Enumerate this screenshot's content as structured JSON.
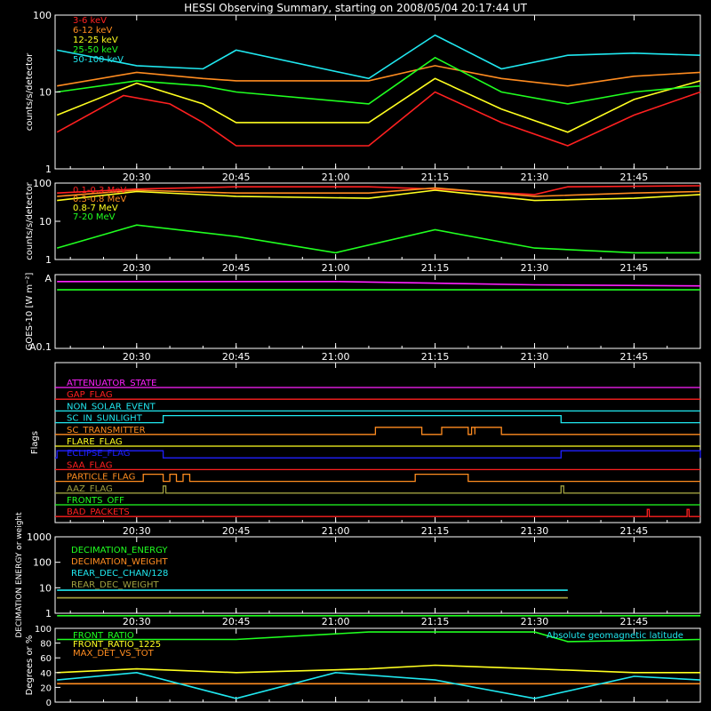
{
  "title": "HESSI Observing Summary, starting on 2008/05/04 20:17:44 UT",
  "colors": {
    "background": "#000000",
    "axes": "#ffffff",
    "red": "#ff2020",
    "orange": "#ff8c20",
    "yellow": "#ffff20",
    "green": "#20ff20",
    "cyan": "#20e8f0",
    "magenta": "#ff20ff",
    "blue": "#2020ff",
    "olive": "#a0a040"
  },
  "time_axis": {
    "ticks": [
      "20:30",
      "20:45",
      "21:00",
      "21:15",
      "21:30",
      "21:45"
    ]
  },
  "chart_data": [
    {
      "type": "line",
      "ylabel": "counts/s/detector",
      "yscale": "log",
      "ylim": [
        1,
        100
      ],
      "yticks": [
        "1",
        "10",
        "100"
      ],
      "legend_placement": "top-left",
      "series": [
        {
          "name": "3-6 keV",
          "color": "#ff2020",
          "note_values": "approx",
          "points": [
            [
              "20:18",
              3
            ],
            [
              "20:28",
              9
            ],
            [
              "20:35",
              7
            ],
            [
              "20:40",
              4
            ],
            [
              "20:45",
              2
            ],
            [
              "21:05",
              2
            ],
            [
              "21:15",
              10
            ],
            [
              "21:25",
              4
            ],
            [
              "21:35",
              2
            ],
            [
              "21:45",
              5
            ],
            [
              "21:55",
              10
            ]
          ]
        },
        {
          "name": "6-12 keV",
          "color": "#ff8c20",
          "points": [
            [
              "20:18",
              12
            ],
            [
              "20:30",
              18
            ],
            [
              "20:40",
              15
            ],
            [
              "20:45",
              14
            ],
            [
              "21:05",
              14
            ],
            [
              "21:15",
              22
            ],
            [
              "21:25",
              15
            ],
            [
              "21:35",
              12
            ],
            [
              "21:45",
              16
            ],
            [
              "21:55",
              18
            ]
          ]
        },
        {
          "name": "12-25 keV",
          "color": "#ffff20",
          "points": [
            [
              "20:18",
              5
            ],
            [
              "20:30",
              13
            ],
            [
              "20:40",
              7
            ],
            [
              "20:45",
              4
            ],
            [
              "21:05",
              4
            ],
            [
              "21:15",
              15
            ],
            [
              "21:25",
              6
            ],
            [
              "21:35",
              3
            ],
            [
              "21:45",
              8
            ],
            [
              "21:55",
              14
            ]
          ]
        },
        {
          "name": "25-50 keV",
          "color": "#20ff20",
          "points": [
            [
              "20:18",
              10
            ],
            [
              "20:30",
              14
            ],
            [
              "20:40",
              12
            ],
            [
              "20:45",
              10
            ],
            [
              "21:05",
              7
            ],
            [
              "21:15",
              28
            ],
            [
              "21:25",
              10
            ],
            [
              "21:35",
              7
            ],
            [
              "21:45",
              10
            ],
            [
              "21:55",
              12
            ]
          ]
        },
        {
          "name": "50-100 keV",
          "color": "#20e8f0",
          "points": [
            [
              "20:18",
              35
            ],
            [
              "20:30",
              22
            ],
            [
              "20:40",
              20
            ],
            [
              "20:45",
              35
            ],
            [
              "21:05",
              15
            ],
            [
              "21:15",
              55
            ],
            [
              "21:25",
              20
            ],
            [
              "21:35",
              30
            ],
            [
              "21:45",
              32
            ],
            [
              "21:55",
              30
            ]
          ]
        }
      ]
    },
    {
      "type": "line",
      "ylabel": "counts/s/detector",
      "yscale": "log",
      "ylim": [
        1,
        100
      ],
      "yticks": [
        "1",
        "10",
        "100"
      ],
      "legend_placement": "top-left",
      "series": [
        {
          "name": "0.1-0.3 MeV",
          "color": "#ff2020",
          "points": [
            [
              "20:18",
              55
            ],
            [
              "20:30",
              70
            ],
            [
              "20:45",
              80
            ],
            [
              "21:05",
              80
            ],
            [
              "21:15",
              70
            ],
            [
              "21:30",
              50
            ],
            [
              "21:35",
              80
            ],
            [
              "21:55",
              85
            ]
          ]
        },
        {
          "name": "0.3-0.8 MeV",
          "color": "#ff8c20",
          "points": [
            [
              "20:18",
              45
            ],
            [
              "20:30",
              65
            ],
            [
              "20:45",
              55
            ],
            [
              "21:05",
              55
            ],
            [
              "21:15",
              75
            ],
            [
              "21:30",
              45
            ],
            [
              "21:45",
              55
            ],
            [
              "21:55",
              60
            ]
          ]
        },
        {
          "name": "0.8-7 MeV",
          "color": "#ffff20",
          "points": [
            [
              "20:18",
              35
            ],
            [
              "20:30",
              60
            ],
            [
              "20:45",
              45
            ],
            [
              "21:05",
              40
            ],
            [
              "21:15",
              65
            ],
            [
              "21:30",
              35
            ],
            [
              "21:45",
              40
            ],
            [
              "21:55",
              50
            ]
          ]
        },
        {
          "name": "7-20 MeV",
          "color": "#20ff20",
          "points": [
            [
              "20:18",
              2
            ],
            [
              "20:30",
              8
            ],
            [
              "20:45",
              4
            ],
            [
              "21:00",
              1.5
            ],
            [
              "21:15",
              6
            ],
            [
              "21:30",
              2
            ],
            [
              "21:45",
              1.5
            ],
            [
              "21:55",
              1.5
            ]
          ]
        }
      ]
    },
    {
      "type": "line",
      "ylabel": "GOES-10 [W m⁻²]",
      "yscale": "log",
      "yticks": [
        "A0.1",
        "A"
      ],
      "series": [
        {
          "color": "#ff20ff",
          "points": [
            [
              "20:18",
              0.95
            ],
            [
              "21:00",
              0.95
            ],
            [
              "21:30",
              0.85
            ],
            [
              "21:55",
              0.82
            ]
          ]
        },
        {
          "color": "#20ff20",
          "points": [
            [
              "20:18",
              0.72
            ],
            [
              "21:55",
              0.72
            ]
          ]
        }
      ]
    },
    {
      "type": "line",
      "ylabel": "Flags",
      "flags": [
        {
          "name": "ATTENUATOR_STATE",
          "color": "#ff20ff",
          "on": []
        },
        {
          "name": "GAP_FLAG",
          "color": "#ff2020",
          "on": []
        },
        {
          "name": "NON_SOLAR_EVENT",
          "color": "#20e8f0",
          "on": []
        },
        {
          "name": "SC_IN_SUNLIGHT",
          "color": "#20e8f0",
          "on": [
            [
              "20:34",
              "21:34"
            ]
          ]
        },
        {
          "name": "SC_TRANSMITTER",
          "color": "#ff8c20",
          "on": [
            [
              "21:06",
              "21:13"
            ],
            [
              "21:16",
              "21:20"
            ],
            [
              "21:20.5",
              "21:21"
            ],
            [
              "21:21",
              "21:25"
            ]
          ]
        },
        {
          "name": "FLARE_FLAG",
          "color": "#ffff20",
          "on": []
        },
        {
          "name": "ECLIPSE_FLAG",
          "color": "#2020ff",
          "on": [
            [
              "20:18",
              "20:34"
            ],
            [
              "21:34",
              "21:55"
            ]
          ]
        },
        {
          "name": "SAA_FLAG",
          "color": "#ff2020",
          "on": []
        },
        {
          "name": "PARTICLE_FLAG",
          "color": "#ff8c20",
          "on": [
            [
              "20:31",
              "20:34"
            ],
            [
              "20:35",
              "20:36"
            ],
            [
              "20:37",
              "20:38"
            ],
            [
              "21:12",
              "21:20"
            ]
          ]
        },
        {
          "name": "AAZ_FLAG",
          "color": "#a0a040",
          "on": [
            [
              "20:34",
              "20:34.4"
            ],
            [
              "21:34",
              "21:34.4"
            ]
          ]
        },
        {
          "name": "FRONTS_OFF",
          "color": "#20ff20",
          "on": []
        },
        {
          "name": "BAD_PACKETS",
          "color": "#ff2020",
          "on": [
            [
              "21:47",
              "21:47.3"
            ],
            [
              "21:53",
              "21:53.3"
            ]
          ]
        }
      ]
    },
    {
      "type": "line",
      "ylabel": "DECIMATION ENERGY or weight",
      "yscale": "log",
      "ylim": [
        1,
        1000
      ],
      "yticks": [
        "1",
        "10",
        "100",
        "1000"
      ],
      "legend_placement": "top-left",
      "series": [
        {
          "name": "DECIMATION_ENERGY",
          "color": "#20ff20",
          "points": [
            [
              "20:18",
              0.8
            ],
            [
              "21:55",
              0.8
            ]
          ]
        },
        {
          "name": "DECIMATION_WEIGHT",
          "color": "#ff8c20",
          "points": [
            [
              "20:18",
              4
            ],
            [
              "20:45",
              4
            ],
            [
              "21:05",
              4
            ],
            [
              "21:35",
              4
            ]
          ]
        },
        {
          "name": "REAR_DEC_CHAN/128",
          "color": "#20e8f0",
          "points": [
            [
              "20:18",
              8
            ],
            [
              "20:45",
              8
            ],
            [
              "21:05",
              8
            ],
            [
              "21:35",
              8
            ]
          ]
        },
        {
          "name": "REAR_DEC_WEIGHT",
          "color": "#a0a040",
          "points": [
            [
              "20:18",
              4
            ],
            [
              "20:45",
              4
            ],
            [
              "21:05",
              4
            ],
            [
              "21:35",
              4
            ]
          ]
        }
      ]
    },
    {
      "type": "line",
      "ylabel": "Degrees or %",
      "ylim": [
        0,
        100
      ],
      "yticks": [
        "0",
        "20",
        "40",
        "60",
        "80",
        "100"
      ],
      "legend_placement": "top-left",
      "series": [
        {
          "name": "FRONT_RATIO",
          "color": "#20ff20",
          "points": [
            [
              "20:18",
              85
            ],
            [
              "20:45",
              85
            ],
            [
              "21:05",
              95
            ],
            [
              "21:30",
              95
            ],
            [
              "21:35",
              82
            ],
            [
              "21:55",
              85
            ]
          ]
        },
        {
          "name": "FRONT_RATIO_1225",
          "color": "#ffff20",
          "points": [
            [
              "20:18",
              40
            ],
            [
              "20:30",
              45
            ],
            [
              "20:45",
              40
            ],
            [
              "21:05",
              45
            ],
            [
              "21:15",
              50
            ],
            [
              "21:30",
              45
            ],
            [
              "21:45",
              40
            ],
            [
              "21:55",
              40
            ]
          ]
        },
        {
          "name": "MAX_DET_VS_TOT",
          "color": "#ff8c20",
          "points": [
            [
              "20:18",
              25
            ],
            [
              "21:55",
              25
            ]
          ]
        },
        {
          "name": "Absolute geomagnetic latitude",
          "color": "#20e8f0",
          "points": [
            [
              "20:18",
              30
            ],
            [
              "20:30",
              40
            ],
            [
              "20:45",
              5
            ],
            [
              "21:00",
              40
            ],
            [
              "21:15",
              30
            ],
            [
              "21:30",
              5
            ],
            [
              "21:45",
              35
            ],
            [
              "21:55",
              30
            ]
          ]
        }
      ]
    }
  ]
}
